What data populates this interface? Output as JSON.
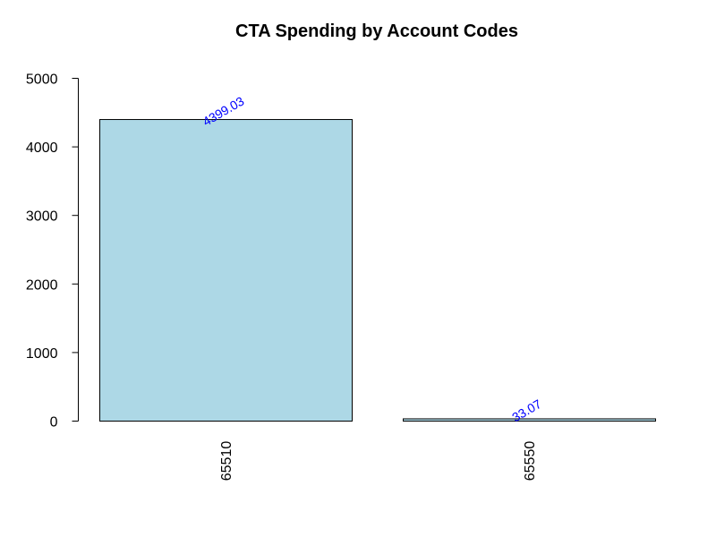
{
  "chart_data": {
    "type": "bar",
    "title": "CTA Spending by Account Codes",
    "xlabel": "",
    "ylabel": "",
    "categories": [
      "65510",
      "65550"
    ],
    "values": [
      4399.03,
      33.07
    ],
    "value_labels": [
      "4399.03",
      "33.07"
    ],
    "ylim": [
      0,
      5000
    ],
    "yticks": [
      0,
      1000,
      2000,
      3000,
      4000,
      5000
    ],
    "ytick_labels": [
      "0",
      "1000",
      "2000",
      "3000",
      "4000",
      "5000"
    ],
    "grid": false,
    "legend": "none",
    "colors": {
      "bar_fill": "#add8e6",
      "bar_stroke": "#000000",
      "data_label": "#0000ff"
    }
  }
}
